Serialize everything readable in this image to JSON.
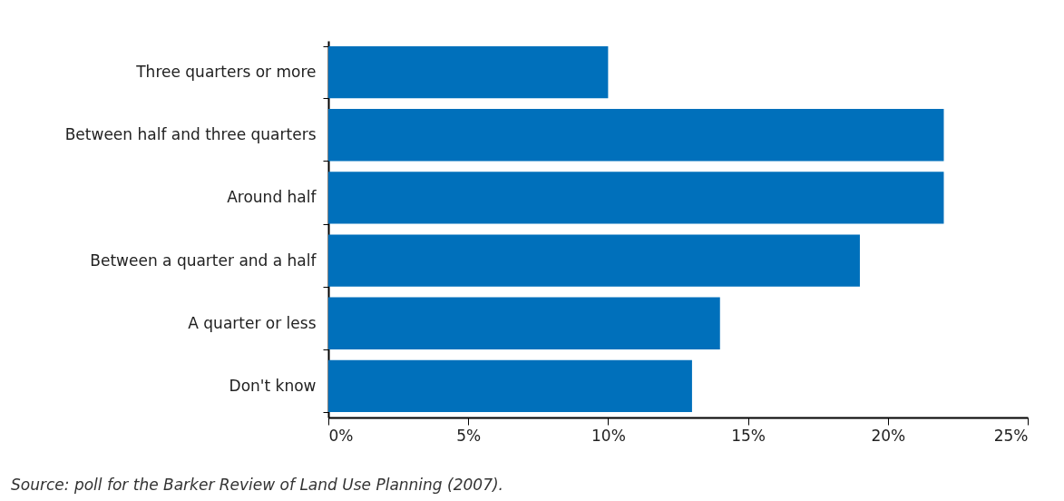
{
  "chart_data": {
    "type": "bar",
    "orientation": "horizontal",
    "categories": [
      "Three quarters or more",
      "Between half and three quarters",
      "Around half",
      "Between a quarter and a half",
      "A quarter or less",
      "Don't know"
    ],
    "values": [
      10,
      22,
      22,
      19,
      14,
      13
    ],
    "color": "#0070bb",
    "xlim": [
      0,
      25
    ],
    "xticks": [
      {
        "value": 0,
        "label": "0%"
      },
      {
        "value": 5,
        "label": "5%"
      },
      {
        "value": 10,
        "label": "10%"
      },
      {
        "value": 15,
        "label": "15%"
      },
      {
        "value": 20,
        "label": "20%"
      },
      {
        "value": 25,
        "label": "25%"
      }
    ],
    "grid": false,
    "annotations": [
      "Source: poll for the Barker Review of Land Use Planning (2007)."
    ]
  }
}
